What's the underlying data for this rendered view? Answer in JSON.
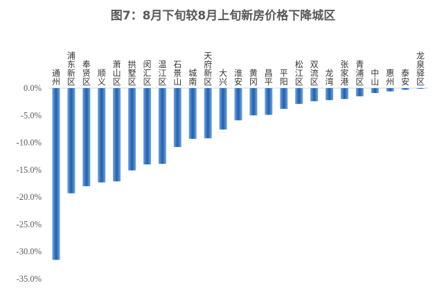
{
  "chart_data": {
    "type": "bar",
    "title": "图7：8月下旬较8月上旬新房价格下降城区",
    "categories": [
      "通州",
      "浦东新区",
      "奉贤区",
      "顺义",
      "萧山区",
      "拱墅区",
      "闵汇区",
      "温江区",
      "石景山",
      "城南",
      "天府新区",
      "大兴",
      "淮安",
      "黄冈",
      "昌平",
      "平阳",
      "松江区",
      "双流区",
      "龙湾",
      "张家港",
      "青浦区",
      "中山",
      "惠州",
      "泰安",
      "龙泉驿区"
    ],
    "values": [
      -31.5,
      -19.3,
      -18.0,
      -17.3,
      -17.1,
      -15.1,
      -14.0,
      -13.9,
      -10.8,
      -9.3,
      -9.2,
      -7.6,
      -5.9,
      -5.0,
      -4.9,
      -3.8,
      -2.9,
      -2.4,
      -2.2,
      -2.0,
      -1.5,
      -0.9,
      -0.6,
      -0.3,
      -0.1
    ],
    "yticks": [
      "0.0%",
      "-5.0%",
      "-10.0%",
      "-15.0%",
      "-20.0%",
      "-25.0%",
      "-30.0%",
      "-35.0%"
    ],
    "ylim": [
      -35,
      0
    ],
    "xlabel": "",
    "ylabel": "",
    "grid": false,
    "bar_color_light": "#6fa3de",
    "bar_color_dark": "#1f5fae"
  }
}
